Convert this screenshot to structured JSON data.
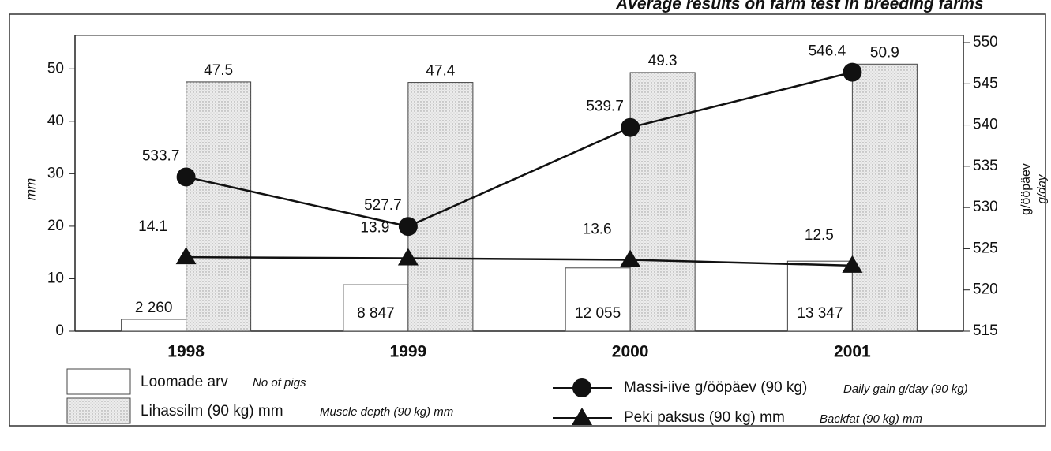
{
  "chart_data": {
    "type": "bar_line",
    "title": "Average results on farm test in breeding farms",
    "ylabel": "mm",
    "y2label": "g/ööpäev",
    "y2label_en": "g/day",
    "categories": [
      "1998",
      "1999",
      "2000",
      "2001"
    ],
    "ylim": [
      0,
      55
    ],
    "yticks": [
      0,
      10,
      20,
      30,
      40,
      50
    ],
    "y2lim": [
      515,
      550
    ],
    "y2ticks": [
      515,
      520,
      525,
      530,
      535,
      540,
      545,
      550
    ],
    "y3lim": [
      0,
      55000
    ],
    "series": [
      {
        "name": "Loomade arv",
        "name_en": "No of pigs",
        "kind": "bar",
        "axis": "y3",
        "color": "#ffffff",
        "values": [
          2260,
          8847,
          12055,
          13347
        ],
        "value_labels": [
          "2 260",
          "8 847",
          "12 055",
          "13 347"
        ]
      },
      {
        "name": "Lihassilm (90 kg) mm",
        "name_en": "Muscle depth (90 kg) mm",
        "kind": "bar",
        "color": "#e6e6e6",
        "values": [
          47.5,
          47.4,
          49.3,
          50.9
        ]
      },
      {
        "name": "Massi-iive g/ööpäev (90 kg)",
        "name_en": "Daily gain g/day (90 kg)",
        "kind": "line",
        "marker": "circle",
        "axis": "y2",
        "color": "#111111",
        "values": [
          533.7,
          527.7,
          539.7,
          546.4
        ]
      },
      {
        "name": "Peki paksus (90 kg) mm",
        "name_en": "Backfat (90 kg) mm",
        "kind": "line",
        "marker": "triangle",
        "color": "#111111",
        "values": [
          14.1,
          13.9,
          13.6,
          12.5
        ]
      }
    ]
  }
}
